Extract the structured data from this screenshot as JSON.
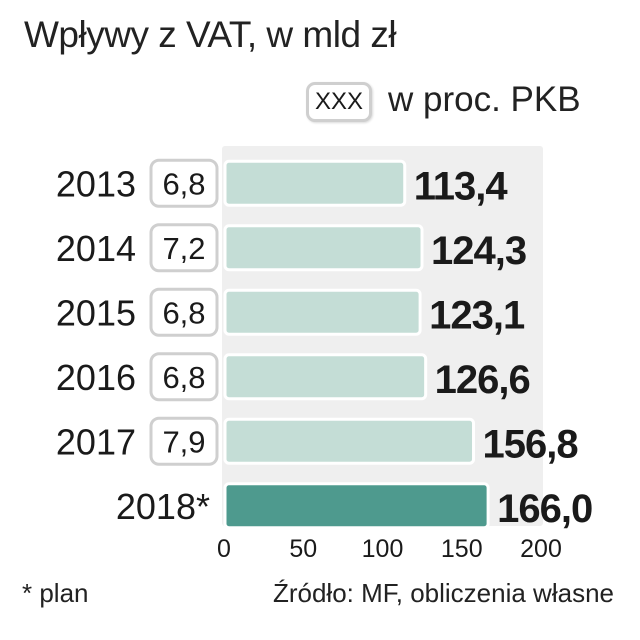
{
  "title": "Wpływy z VAT, w mld zł",
  "legend": {
    "box_text": "XXX",
    "label": "w proc. PKB"
  },
  "footnote": "* plan",
  "source": "Źródło: MF, obliczenia własne",
  "colors": {
    "bar": "#c4ddd6",
    "bar_highlight": "#4e9a8e",
    "bar_border": "#ffffff",
    "panel": "#efefef",
    "text": "#1a1a1a"
  },
  "chart_data": {
    "type": "bar",
    "orientation": "horizontal",
    "title": "Wpływy z VAT, w mld zł",
    "categories": [
      "2013",
      "2014",
      "2015",
      "2016",
      "2017",
      "2018*"
    ],
    "values": [
      113.4,
      124.3,
      123.1,
      126.6,
      156.8,
      166.0
    ],
    "value_labels": [
      "113,4",
      "124,3",
      "123,1",
      "126,6",
      "156,8",
      "166,0"
    ],
    "gdp_share_labels": [
      "6,8",
      "7,2",
      "6,8",
      "6,8",
      "7,9",
      ""
    ],
    "highlight_index": 5,
    "xlim": [
      0,
      200
    ],
    "xticks": [
      0,
      50,
      100,
      150,
      200
    ],
    "grid": false
  }
}
